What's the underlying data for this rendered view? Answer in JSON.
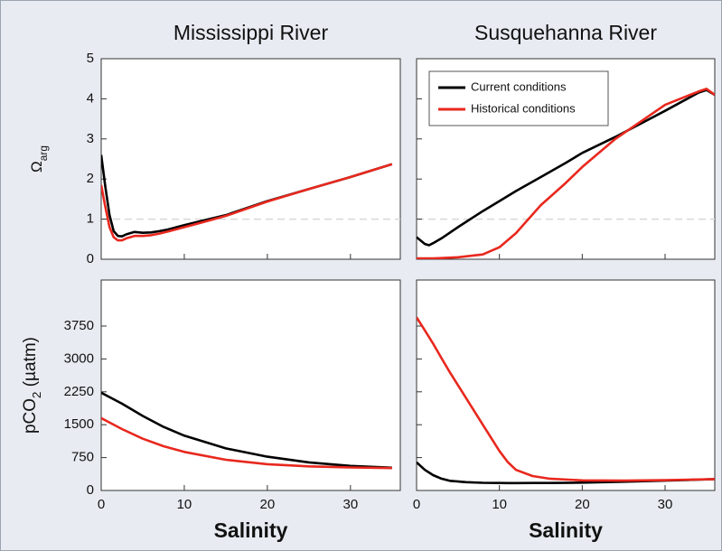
{
  "chart_data": [
    {
      "type": "line",
      "title": "Mississippi River",
      "ylabel": [
        "Ω",
        "arg"
      ],
      "x": [
        0,
        0.5,
        1,
        1.5,
        2,
        2.5,
        3,
        4,
        5,
        6,
        7,
        8,
        10,
        12,
        15,
        20,
        25,
        30,
        35
      ],
      "series": [
        {
          "name": "Current conditions",
          "color": "#000000",
          "values": [
            2.6,
            1.8,
            1.1,
            0.7,
            0.58,
            0.57,
            0.62,
            0.68,
            0.66,
            0.67,
            0.7,
            0.74,
            0.85,
            0.95,
            1.1,
            1.45,
            1.75,
            2.05,
            2.37
          ]
        },
        {
          "name": "Historical conditions",
          "color": "#e8281e",
          "values": [
            1.85,
            1.3,
            0.8,
            0.55,
            0.47,
            0.47,
            0.52,
            0.58,
            0.58,
            0.6,
            0.64,
            0.69,
            0.8,
            0.91,
            1.08,
            1.44,
            1.75,
            2.05,
            2.37
          ]
        }
      ],
      "xlim": [
        0,
        36
      ],
      "ylim": [
        0,
        5
      ],
      "xticks": [
        0,
        10,
        20,
        30
      ],
      "yticks": [
        0,
        1,
        2,
        3,
        4,
        5
      ],
      "show_xtick_labels": false,
      "show_ytick_labels": true,
      "hline": 1
    },
    {
      "type": "line",
      "title": "Susquehanna River",
      "x": [
        0,
        1,
        1.5,
        2,
        3,
        5,
        8,
        10,
        12,
        15,
        18,
        20,
        24,
        30,
        34,
        35,
        36
      ],
      "series": [
        {
          "name": "Current conditions",
          "color": "#000000",
          "values": [
            0.55,
            0.38,
            0.35,
            0.4,
            0.52,
            0.8,
            1.2,
            1.45,
            1.7,
            2.05,
            2.4,
            2.65,
            3.05,
            3.7,
            4.15,
            4.22,
            4.1
          ]
        },
        {
          "name": "Historical conditions",
          "color": "#e8281e",
          "values": [
            0.02,
            0.02,
            0.02,
            0.02,
            0.03,
            0.05,
            0.12,
            0.3,
            0.65,
            1.35,
            1.9,
            2.3,
            3.0,
            3.85,
            4.18,
            4.25,
            4.1
          ]
        }
      ],
      "xlim": [
        0,
        36
      ],
      "ylim": [
        0,
        5
      ],
      "xticks": [
        0,
        10,
        20,
        30
      ],
      "yticks": [
        0,
        1,
        2,
        3,
        4,
        5
      ],
      "show_xtick_labels": false,
      "show_ytick_labels": false,
      "hline": 1,
      "legend": "upper-left"
    },
    {
      "type": "line",
      "ylabel": [
        "pCO",
        "2",
        " (µatm)"
      ],
      "xlabel": "Salinity",
      "x": [
        0,
        2.5,
        5,
        7.5,
        10,
        15,
        20,
        25,
        30,
        35
      ],
      "series": [
        {
          "name": "Current conditions",
          "color": "#000000",
          "values": [
            2230,
            1980,
            1700,
            1450,
            1250,
            960,
            770,
            640,
            560,
            520
          ]
        },
        {
          "name": "Historical conditions",
          "color": "#e8281e",
          "values": [
            1650,
            1400,
            1180,
            1010,
            880,
            700,
            600,
            550,
            525,
            510
          ]
        }
      ],
      "xlim": [
        0,
        36
      ],
      "ylim": [
        0,
        4800
      ],
      "xticks": [
        0,
        10,
        20,
        30
      ],
      "yticks": [
        0,
        750,
        1500,
        2250,
        3000,
        3750
      ],
      "show_xtick_labels": true,
      "show_ytick_labels": true
    },
    {
      "type": "line",
      "xlabel": "Salinity",
      "x": [
        0,
        1,
        2,
        3,
        4,
        6,
        8,
        10,
        11,
        12,
        14,
        16,
        20,
        25,
        30,
        36
      ],
      "series": [
        {
          "name": "Current conditions",
          "color": "#000000",
          "values": [
            640,
            470,
            350,
            270,
            220,
            190,
            175,
            170,
            168,
            168,
            170,
            172,
            180,
            200,
            225,
            260
          ]
        },
        {
          "name": "Historical conditions",
          "color": "#e8281e",
          "values": [
            3950,
            3650,
            3350,
            3020,
            2700,
            2100,
            1500,
            900,
            650,
            470,
            330,
            270,
            230,
            225,
            235,
            260
          ]
        }
      ],
      "xlim": [
        0,
        36
      ],
      "ylim": [
        0,
        4800
      ],
      "xticks": [
        0,
        10,
        20,
        30
      ],
      "yticks": [
        0,
        750,
        1500,
        2250,
        3000,
        3750
      ],
      "show_xtick_labels": true,
      "show_ytick_labels": false
    }
  ]
}
